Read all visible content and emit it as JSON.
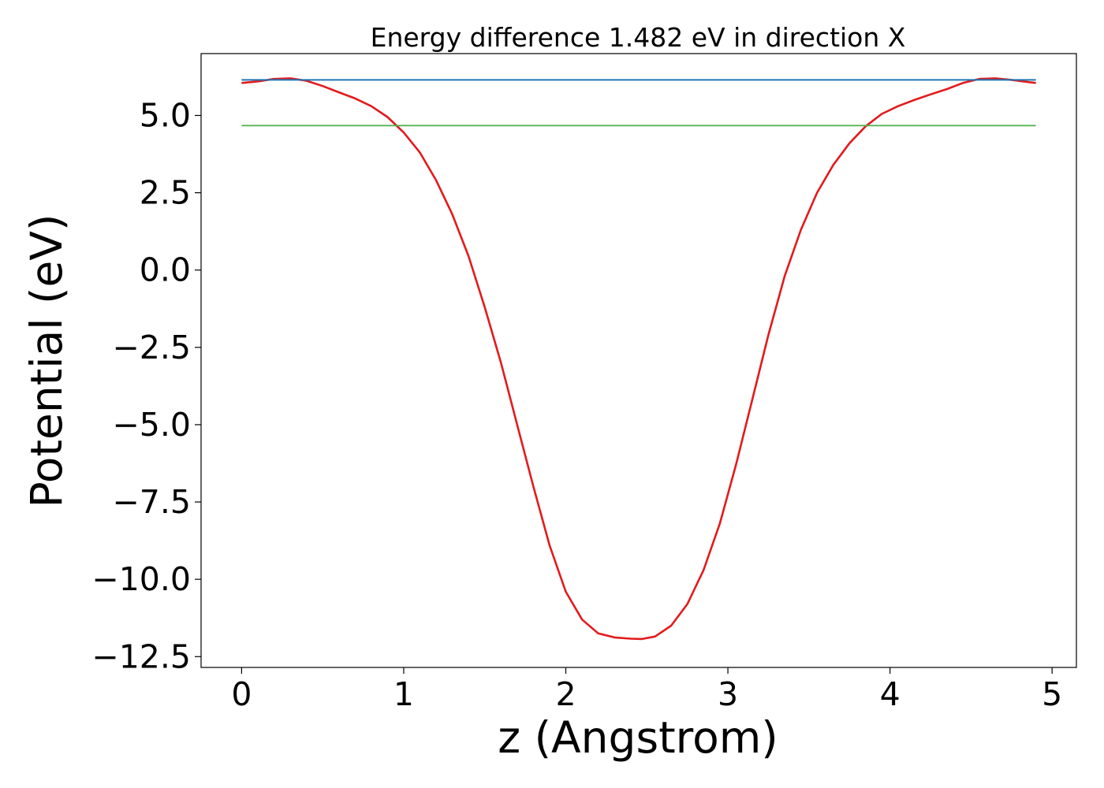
{
  "chart_data": {
    "type": "line",
    "title": "Energy difference 1.482 eV in direction X",
    "xlabel": "z (Angstrom)",
    "ylabel": "Potential (eV)",
    "xlim": [
      -0.25,
      5.15
    ],
    "ylim": [
      -12.85,
      7.0
    ],
    "xticks": [
      0,
      1,
      2,
      3,
      4,
      5
    ],
    "xtick_labels": [
      "0",
      "1",
      "2",
      "3",
      "4",
      "5"
    ],
    "yticks": [
      5.0,
      2.5,
      0.0,
      -2.5,
      -5.0,
      -7.5,
      -10.0,
      -12.5
    ],
    "ytick_labels": [
      "5.0",
      "2.5",
      "0.0",
      "−2.5",
      "−5.0",
      "−7.5",
      "−10.0",
      "−12.5"
    ],
    "grid": false,
    "colors": {
      "potential": "#e31a1c",
      "vacuum": "#1f77b4",
      "fermi": "#4daf4a"
    },
    "series": [
      {
        "key": "potential",
        "x": [
          0.0,
          0.1,
          0.2,
          0.3,
          0.4,
          0.5,
          0.6,
          0.7,
          0.8,
          0.9,
          1.0,
          1.1,
          1.2,
          1.3,
          1.4,
          1.5,
          1.6,
          1.7,
          1.8,
          1.9,
          2.0,
          2.1,
          2.2,
          2.3,
          2.4,
          2.47,
          2.55,
          2.65,
          2.75,
          2.85,
          2.95,
          3.05,
          3.15,
          3.25,
          3.35,
          3.45,
          3.55,
          3.65,
          3.75,
          3.85,
          3.95,
          4.05,
          4.15,
          4.25,
          4.35,
          4.45,
          4.55,
          4.65,
          4.75,
          4.85,
          4.9
        ],
        "y": [
          6.05,
          6.1,
          6.18,
          6.2,
          6.12,
          5.95,
          5.75,
          5.55,
          5.3,
          4.95,
          4.45,
          3.8,
          2.9,
          1.8,
          0.45,
          -1.2,
          -3.0,
          -5.0,
          -7.0,
          -8.9,
          -10.4,
          -11.3,
          -11.75,
          -11.88,
          -11.92,
          -11.93,
          -11.85,
          -11.5,
          -10.8,
          -9.7,
          -8.2,
          -6.3,
          -4.2,
          -2.1,
          -0.2,
          1.3,
          2.5,
          3.4,
          4.1,
          4.65,
          5.05,
          5.3,
          5.5,
          5.68,
          5.85,
          6.05,
          6.18,
          6.2,
          6.15,
          6.08,
          6.05
        ]
      },
      {
        "key": "vacuum",
        "x": [
          0.0,
          4.9
        ],
        "y": [
          6.15,
          6.15
        ]
      },
      {
        "key": "fermi",
        "x": [
          0.0,
          4.9
        ],
        "y": [
          4.67,
          4.67
        ]
      }
    ]
  }
}
